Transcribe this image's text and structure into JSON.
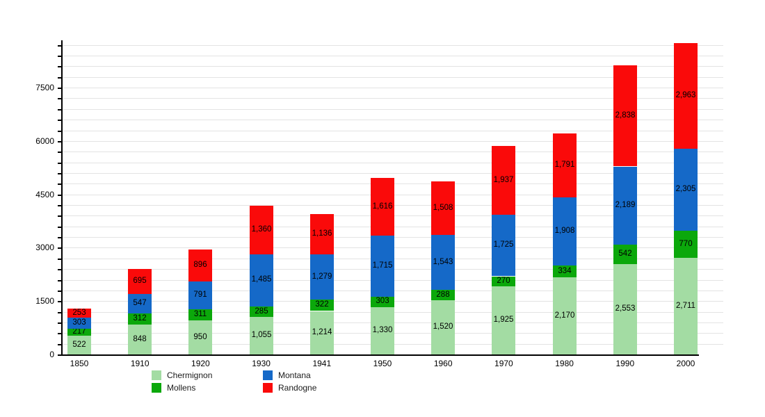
{
  "chart_data": {
    "type": "bar",
    "stacked": true,
    "title": "",
    "xlabel": "",
    "ylabel": "",
    "categories": [
      "1850",
      "1910",
      "1920",
      "1930",
      "1941",
      "1950",
      "1960",
      "1970",
      "1980",
      "1990",
      "2000"
    ],
    "series": [
      {
        "name": "Chermignon",
        "color": "#A3DCA3",
        "values": [
          522,
          848,
          950,
          1055,
          1214,
          1330,
          1520,
          1925,
          2170,
          2553,
          2711
        ]
      },
      {
        "name": "Mollens",
        "color": "#0BA80B",
        "values": [
          217,
          312,
          311,
          285,
          322,
          303,
          288,
          270,
          334,
          542,
          770
        ]
      },
      {
        "name": "Montana",
        "color": "#1569C8",
        "values": [
          303,
          547,
          791,
          1485,
          1279,
          1715,
          1543,
          1725,
          1908,
          2189,
          2305
        ]
      },
      {
        "name": "Randogne",
        "color": "#FA0A0A",
        "values": [
          253,
          695,
          896,
          1360,
          1136,
          1616,
          1508,
          1937,
          1791,
          2838,
          2963
        ]
      }
    ],
    "ylim": [
      0,
      8830
    ],
    "yticks": [
      0,
      1500,
      3000,
      4500,
      6000,
      7500
    ],
    "ytick_labels": [
      "0",
      "1500",
      "3000",
      "4500",
      "6000",
      "7500"
    ],
    "minor_grid_step": 300,
    "grid": true,
    "legend_position": "bottom",
    "legend_order": [
      "Chermignon",
      "Montana",
      "Mollens",
      "Randogne"
    ],
    "colors": {
      "chermignon_light_green": "#A3DCA3",
      "mollens_green": "#0BA80B",
      "montana_blue": "#1569C8",
      "randogne_red": "#FA0A0A",
      "gridline": "#e3e3e3",
      "axis": "#000000",
      "background": "#ffffff"
    }
  }
}
